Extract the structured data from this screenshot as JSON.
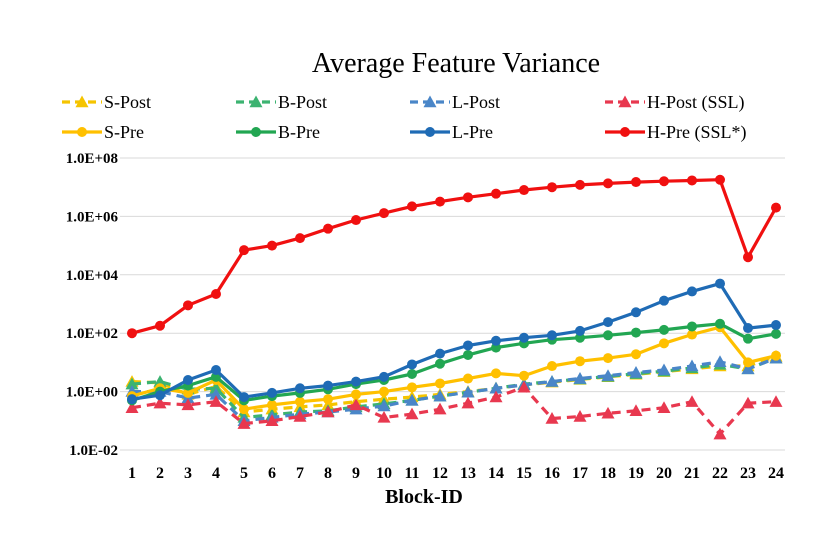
{
  "chart_data": {
    "type": "line",
    "title": "Average Feature Variance",
    "xlabel": "Block-ID",
    "ylabel": "",
    "yscale": "log",
    "ylim": [
      0.01,
      100000000
    ],
    "yticks": [
      "1.0E-02",
      "1.0E+00",
      "1.0E+02",
      "1.0E+04",
      "1.0E+06",
      "1.0E+08"
    ],
    "categories": [
      "1",
      "2",
      "3",
      "4",
      "5",
      "6",
      "7",
      "8",
      "9",
      "10",
      "11",
      "12",
      "13",
      "14",
      "15",
      "16",
      "17",
      "18",
      "19",
      "20",
      "21",
      "22",
      "23",
      "24"
    ],
    "grid": true,
    "legend_position": "top",
    "series": [
      {
        "name": "S-Post",
        "color": "#f5c400",
        "marker": "triangle",
        "dash": true,
        "values": [
          2.2,
          2.0,
          0.8,
          1.5,
          0.2,
          0.25,
          0.3,
          0.35,
          0.45,
          0.55,
          0.65,
          0.8,
          1.0,
          1.3,
          1.7,
          2.1,
          2.6,
          3.2,
          3.9,
          4.8,
          6.0,
          7.5,
          7.5,
          16
        ]
      },
      {
        "name": "B-Post",
        "color": "#3cb371",
        "marker": "triangle",
        "dash": true,
        "values": [
          1.8,
          2.2,
          1.2,
          1.3,
          0.13,
          0.16,
          0.2,
          0.22,
          0.3,
          0.38,
          0.5,
          0.7,
          0.95,
          1.3,
          1.8,
          2.2,
          2.7,
          3.3,
          4.1,
          5.0,
          6.5,
          8.5,
          6.0,
          14
        ]
      },
      {
        "name": "L-Post",
        "color": "#4a86c8",
        "marker": "triangle",
        "dash": true,
        "values": [
          1.0,
          1.0,
          0.6,
          0.8,
          0.1,
          0.13,
          0.17,
          0.2,
          0.25,
          0.32,
          0.5,
          0.7,
          0.95,
          1.3,
          1.7,
          2.2,
          2.8,
          3.5,
          4.5,
          5.5,
          7.5,
          10.5,
          6.0,
          14
        ]
      },
      {
        "name": "H-Post (SSL)",
        "color": "#e8384f",
        "marker": "triangle",
        "dash": true,
        "values": [
          0.28,
          0.4,
          0.35,
          0.45,
          0.08,
          0.1,
          0.14,
          0.2,
          0.35,
          0.13,
          0.17,
          0.25,
          0.4,
          0.65,
          1.4,
          0.12,
          0.14,
          0.18,
          0.22,
          0.28,
          0.45,
          0.035,
          0.4,
          0.45
        ]
      },
      {
        "name": "S-Pre",
        "color": "#ffc000",
        "marker": "circle",
        "dash": false,
        "values": [
          0.7,
          1.3,
          0.9,
          2.5,
          0.25,
          0.35,
          0.45,
          0.55,
          0.8,
          1.0,
          1.4,
          1.9,
          2.8,
          4.2,
          3.5,
          7.5,
          11,
          14,
          19,
          45,
          90,
          160,
          10,
          17
        ]
      },
      {
        "name": "B-Pre",
        "color": "#22a652",
        "marker": "circle",
        "dash": false,
        "values": [
          0.5,
          1.0,
          1.6,
          3.2,
          0.5,
          0.7,
          0.9,
          1.2,
          1.8,
          2.5,
          4.0,
          9.0,
          18,
          32,
          45,
          60,
          70,
          85,
          105,
          130,
          170,
          210,
          65,
          95
        ]
      },
      {
        "name": "L-Pre",
        "color": "#1f6bb5",
        "marker": "circle",
        "dash": false,
        "values": [
          0.55,
          0.75,
          2.5,
          5.5,
          0.65,
          0.9,
          1.3,
          1.6,
          2.2,
          3.2,
          8.5,
          20,
          38,
          55,
          70,
          85,
          120,
          240,
          520,
          1300,
          2700,
          5000,
          150,
          190
        ]
      },
      {
        "name": "H-Pre (SSL*)",
        "color": "#f01010",
        "marker": "circle",
        "dash": false,
        "values": [
          100,
          180,
          900,
          2200,
          70000,
          100000,
          180000,
          380000,
          750000,
          1300000,
          2200000,
          3200000,
          4500000,
          6000000,
          8000000,
          10000000,
          12000000,
          13500000,
          15000000,
          16000000,
          17000000,
          18000000,
          40000,
          2000000
        ]
      }
    ]
  }
}
